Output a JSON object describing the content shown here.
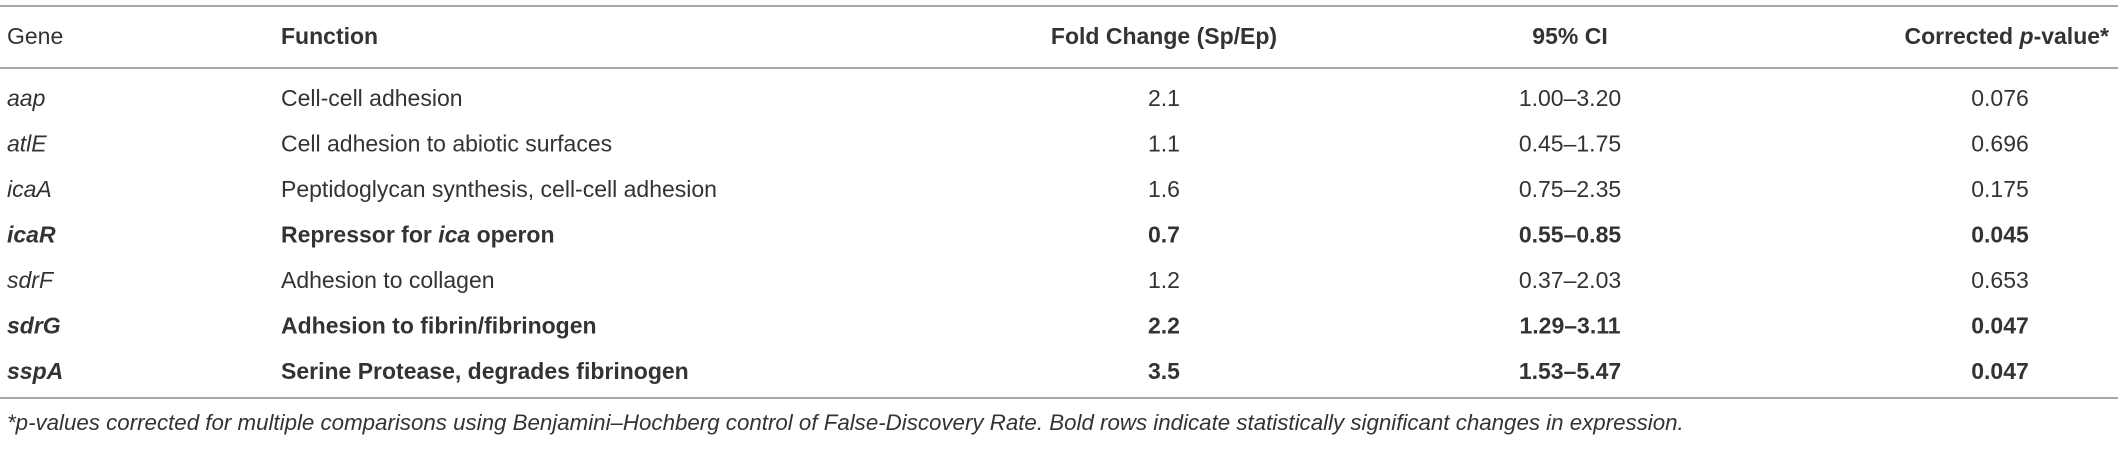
{
  "table": {
    "header": [
      "Gene",
      "Function",
      "Fold Change (Sp/Ep)",
      "95% CI",
      [
        "Corrected ",
        "p",
        "-value*"
      ]
    ],
    "rows": [
      {
        "cells": [
          "aap",
          "Cell-cell adhesion",
          "2.1",
          "1.00–3.20",
          "0.076"
        ],
        "bold": false
      },
      {
        "cells": [
          "atlE",
          "Cell adhesion to abiotic surfaces",
          "1.1",
          "0.45–1.75",
          "0.696"
        ],
        "bold": false
      },
      {
        "cells": [
          "icaA",
          "Peptidoglycan synthesis, cell-cell adhesion",
          "1.6",
          "0.75–2.35",
          "0.175"
        ],
        "bold": false
      },
      {
        "cells": [
          "icaR",
          [
            "Repressor for ",
            "ica",
            " operon"
          ],
          "0.7",
          "0.55–0.85",
          "0.045"
        ],
        "bold": true
      },
      {
        "cells": [
          "sdrF",
          "Adhesion to collagen",
          "1.2",
          "0.37–2.03",
          "0.653"
        ],
        "bold": false
      },
      {
        "cells": [
          "sdrG",
          "Adhesion to fibrin/fibrinogen",
          "2.2",
          "1.29–3.11",
          "0.047"
        ],
        "bold": true
      },
      {
        "cells": [
          "sspA",
          "Serine Protease, degrades fibrinogen",
          "3.5",
          "1.53–5.47",
          "0.047"
        ],
        "bold": true
      }
    ],
    "footnote": "*p-values corrected for multiple comparisons using Benjamini–Hochberg control of False-Discovery Rate. Bold rows indicate statistically significant changes in expression."
  }
}
